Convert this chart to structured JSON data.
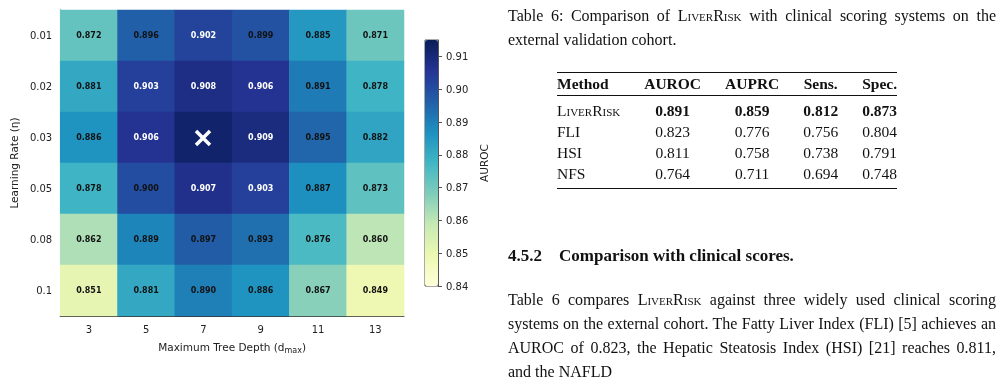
{
  "chart_data": [
    {
      "type": "heatmap",
      "xlabel": "Maximum Tree Depth (d$_{max}$)",
      "ylabel": "Learning Rate (η)",
      "clabel": "AUROC",
      "categories": [
        "3",
        "5",
        "7",
        "9",
        "11",
        "13"
      ],
      "y_categories": [
        "0.01",
        "0.02",
        "0.03",
        "0.05",
        "0.08",
        "0.1"
      ],
      "cells": [
        [
          0.872,
          0.896,
          0.902,
          0.899,
          0.885,
          0.871
        ],
        [
          0.881,
          0.903,
          0.908,
          0.906,
          0.891,
          0.878
        ],
        [
          0.886,
          0.906,
          0.912,
          0.909,
          0.895,
          0.882
        ],
        [
          0.878,
          0.9,
          0.907,
          0.903,
          0.887,
          0.873
        ],
        [
          0.862,
          0.889,
          0.897,
          0.893,
          0.876,
          0.86
        ],
        [
          0.851,
          0.881,
          0.89,
          0.886,
          0.867,
          0.849
        ]
      ],
      "cell_labels": [
        [
          "0.872",
          "0.896",
          "0.902",
          "0.899",
          "0.885",
          "0.871"
        ],
        [
          "0.881",
          "0.903",
          "0.908",
          "0.906",
          "0.891",
          "0.878"
        ],
        [
          "0.886",
          "0.906",
          null,
          "0.909",
          "0.895",
          "0.882"
        ],
        [
          "0.878",
          "0.900",
          "0.907",
          "0.903",
          "0.887",
          "0.873"
        ],
        [
          "0.862",
          "0.889",
          "0.897",
          "0.893",
          "0.876",
          "0.860"
        ],
        [
          "0.851",
          "0.881",
          "0.890",
          "0.886",
          "0.867",
          "0.849"
        ]
      ],
      "clim": [
        0.84,
        0.915
      ],
      "cticks": [
        0.84,
        0.85,
        0.86,
        0.87,
        0.88,
        0.89,
        {
          "value": 0.9,
          "label": "0.90"
        },
        0.91
      ],
      "data_labels": true
    },
    {
      "type": "other",
      "title": "Table 6: Comparison of LiverRisk with clinical scoring systems on the external validation cohort.",
      "xlabel": "Method",
      "categories": [
        "LiverRisk",
        "FLI",
        "HSI",
        "NFS"
      ],
      "series": [
        {
          "name": "AUROC",
          "values": [
            0.891,
            0.823,
            0.811,
            0.764
          ]
        },
        {
          "name": "AUPRC",
          "values": [
            0.859,
            0.776,
            0.758,
            0.711
          ]
        },
        {
          "name": "Sens.",
          "values": [
            0.812,
            0.756,
            0.738,
            0.694
          ]
        },
        {
          "name": "Spec.",
          "values": [
            0.873,
            0.804,
            0.791,
            0.748
          ]
        }
      ],
      "data_labels": true,
      "annotations": [
        "4.5.2 Comparison with clinical scores.",
        "Table 6 compares LiverRisk against three widely used clinical scoring systems on the external cohort. The Fatty Liver Index (FLI) [5] achieves an AUROC of 0.823, the Hepatic Steatosis Index (HSI) [21] reaches 0.811, and the NAFLD"
      ]
    }
  ]
}
